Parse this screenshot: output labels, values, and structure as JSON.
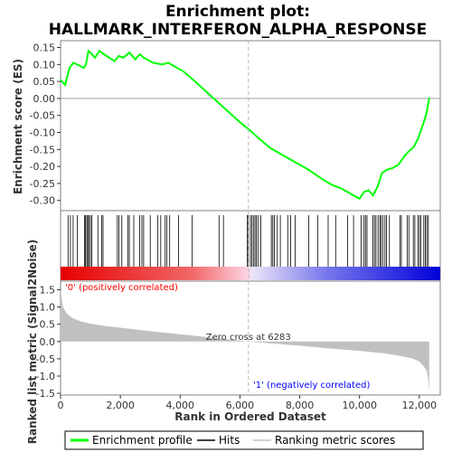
{
  "chart_data": {
    "type": "line",
    "title_line1": "Enrichment plot:",
    "title_line2": "HALLMARK_INTERFERON_ALPHA_RESPONSE",
    "es_ylabel": "Enrichment score (ES)",
    "metric_ylabel": "Ranked list metric (Signal2Noise)",
    "xlabel": "Rank in Ordered Dataset",
    "xlim": [
      0,
      12700
    ],
    "x_ticks": [
      0,
      2000,
      4000,
      6000,
      8000,
      10000,
      12000
    ],
    "x_tick_labels": [
      "0",
      "2,000",
      "4,000",
      "6,000",
      "8,000",
      "10,000",
      "12,000"
    ],
    "es_ylim": [
      -0.33,
      0.17
    ],
    "es_ticks": [
      0.15,
      0.1,
      0.05,
      0.0,
      -0.05,
      -0.1,
      -0.15,
      -0.2,
      -0.25,
      -0.3
    ],
    "es_tick_labels": [
      "0.15",
      "0.10",
      "0.05",
      "0.00",
      "-0.05",
      "-0.10",
      "-0.15",
      "-0.20",
      "-0.25",
      "-0.30"
    ],
    "metric_ylim": [
      -1.55,
      1.75
    ],
    "metric_ticks": [
      1.5,
      1.0,
      0.5,
      0.0,
      -0.5,
      -1.0,
      -1.5
    ],
    "metric_tick_labels": [
      "1.5",
      "1.0",
      "0.5",
      "0.0",
      "-0.5",
      "-1.0",
      "-1.5"
    ],
    "zero_cross": 6283,
    "zero_cross_label": "Zero cross at 6283",
    "pos_label": "'0' (positively correlated)",
    "neg_label": "'1' (negatively correlated)",
    "series": [
      {
        "name": "Enrichment profile",
        "color": "#00ff00",
        "x": [
          0,
          150,
          300,
          430,
          780,
          850,
          930,
          1000,
          1150,
          1300,
          1450,
          1800,
          1950,
          2100,
          2300,
          2500,
          2650,
          2780,
          3100,
          3400,
          3600,
          3800,
          4100,
          4500,
          5000,
          5500,
          6000,
          6283,
          6600,
          7000,
          7400,
          7900,
          8300,
          8800,
          9100,
          9400,
          9700,
          10000,
          10150,
          10300,
          10450,
          10600,
          10750,
          10900,
          11100,
          11300,
          11500,
          11650,
          11800,
          11950,
          12050,
          12150,
          12250,
          12330
        ],
        "values": [
          0.055,
          0.04,
          0.09,
          0.105,
          0.09,
          0.1,
          0.14,
          0.135,
          0.12,
          0.14,
          0.13,
          0.11,
          0.125,
          0.12,
          0.135,
          0.115,
          0.13,
          0.12,
          0.105,
          0.1,
          0.105,
          0.095,
          0.08,
          0.05,
          0.01,
          -0.03,
          -0.07,
          -0.09,
          -0.115,
          -0.145,
          -0.165,
          -0.19,
          -0.21,
          -0.24,
          -0.255,
          -0.265,
          -0.28,
          -0.295,
          -0.275,
          -0.27,
          -0.285,
          -0.26,
          -0.22,
          -0.21,
          -0.205,
          -0.195,
          -0.17,
          -0.155,
          -0.145,
          -0.12,
          -0.095,
          -0.07,
          -0.04,
          0.003
        ]
      },
      {
        "name": "Hits",
        "color": "#000000"
      },
      {
        "name": "Ranking metric scores",
        "color": "#c0c0c0",
        "x": [
          0,
          80,
          200,
          400,
          700,
          1000,
          1500,
          2000,
          3000,
          4000,
          5000,
          6000,
          6283,
          7000,
          8000,
          9000,
          10000,
          10800,
          11400,
          11800,
          12000,
          12150,
          12250,
          12300,
          12330
        ],
        "values": [
          1.5,
          1.0,
          0.82,
          0.68,
          0.58,
          0.52,
          0.45,
          0.4,
          0.3,
          0.21,
          0.12,
          0.03,
          0.0,
          -0.05,
          -0.12,
          -0.2,
          -0.27,
          -0.34,
          -0.42,
          -0.5,
          -0.58,
          -0.72,
          -0.85,
          -1.1,
          -1.45
        ]
      }
    ],
    "hits": [
      250,
      330,
      420,
      560,
      800,
      830,
      880,
      910,
      950,
      1000,
      1050,
      1250,
      1380,
      1420,
      1900,
      1950,
      2050,
      2250,
      2300,
      2450,
      2650,
      2720,
      2780,
      3000,
      3250,
      3350,
      3500,
      3550,
      3650,
      3950,
      4400,
      5300,
      5450,
      6250,
      6270,
      6350,
      6400,
      6450,
      6500,
      6550,
      6600,
      6700,
      7050,
      7100,
      7150,
      7250,
      7350,
      7600,
      7700,
      7850,
      8300,
      8600,
      8950,
      9200,
      9600,
      9800,
      10050,
      10150,
      10200,
      10250,
      10450,
      10500,
      10550,
      10620,
      10680,
      10720,
      10780,
      10850,
      10900,
      11000,
      11350,
      11400,
      11600,
      11650,
      11800,
      11850,
      11950,
      12000,
      12050,
      12150,
      12200,
      12250,
      12300
    ],
    "ranking_bar": {
      "red": "#ff0000",
      "white": "#ffffff",
      "blue": "#0000ff"
    }
  },
  "legend": {
    "entries": [
      "Enrichment profile",
      "Hits",
      "Ranking metric scores"
    ]
  }
}
